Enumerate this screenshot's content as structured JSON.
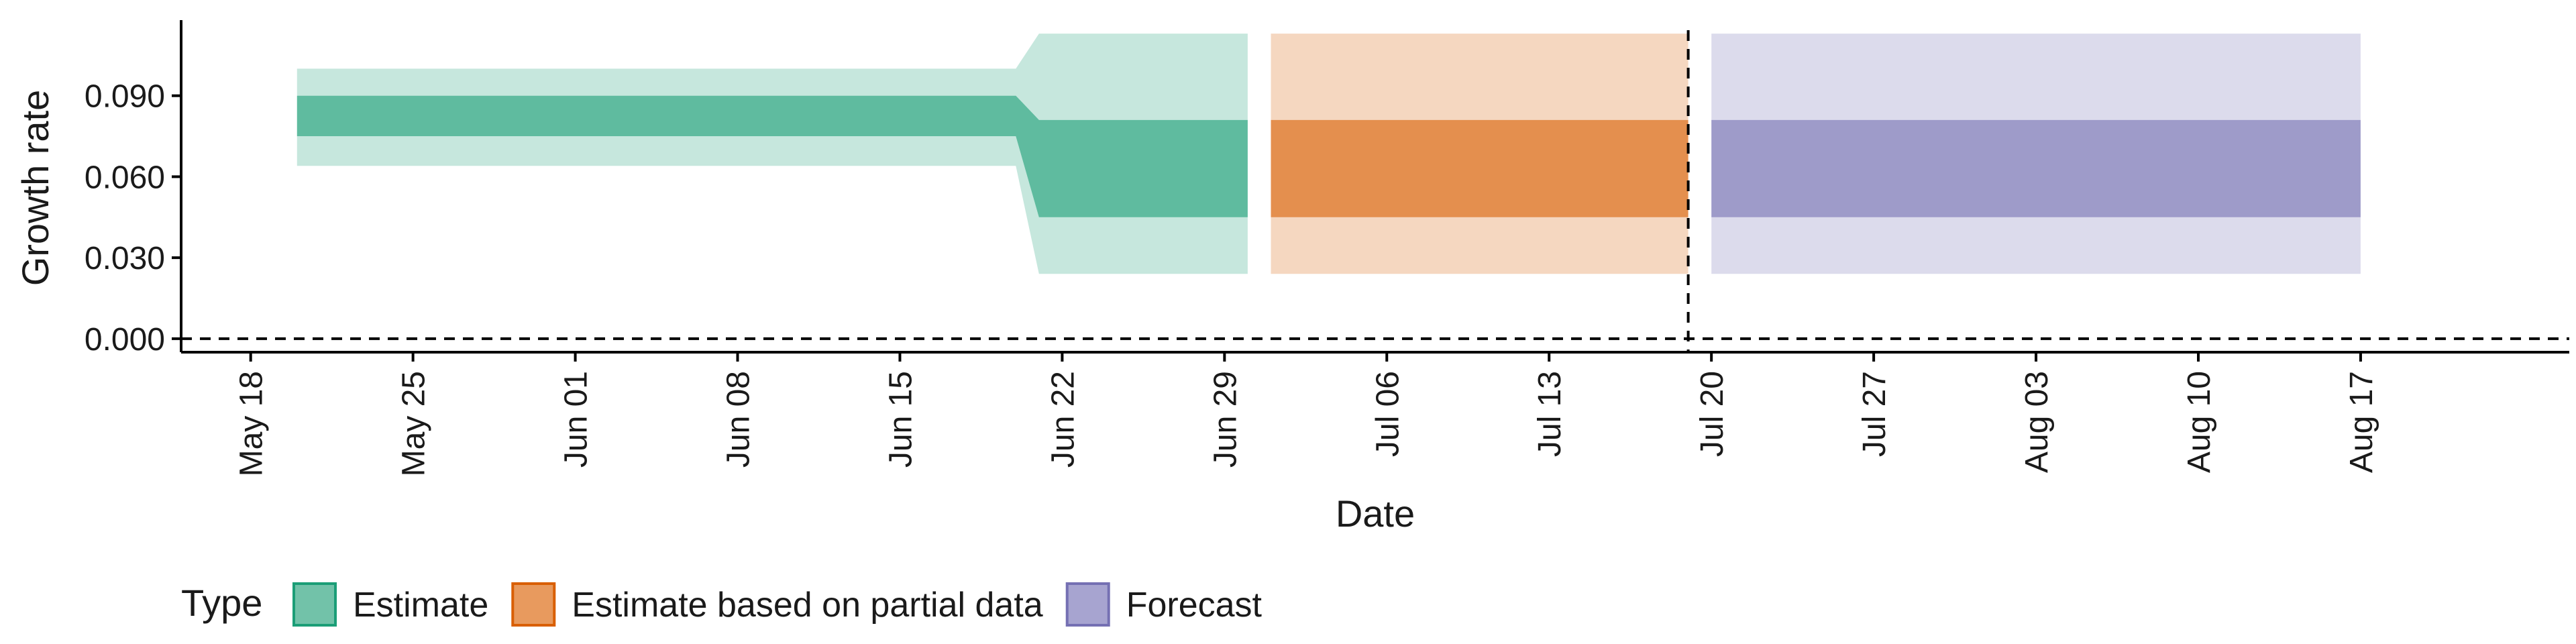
{
  "chart_data": {
    "type": "area",
    "title": "",
    "xlabel": "Date",
    "ylabel": "Growth rate",
    "x_ticks": [
      {
        "date": "2020-05-18",
        "label": "May 18"
      },
      {
        "date": "2020-05-25",
        "label": "May 25"
      },
      {
        "date": "2020-06-01",
        "label": "Jun 01"
      },
      {
        "date": "2020-06-08",
        "label": "Jun 08"
      },
      {
        "date": "2020-06-15",
        "label": "Jun 15"
      },
      {
        "date": "2020-06-22",
        "label": "Jun 22"
      },
      {
        "date": "2020-06-29",
        "label": "Jun 29"
      },
      {
        "date": "2020-07-06",
        "label": "Jul 06"
      },
      {
        "date": "2020-07-13",
        "label": "Jul 13"
      },
      {
        "date": "2020-07-20",
        "label": "Jul 20"
      },
      {
        "date": "2020-07-27",
        "label": "Jul 27"
      },
      {
        "date": "2020-08-03",
        "label": "Aug 03"
      },
      {
        "date": "2020-08-10",
        "label": "Aug 10"
      },
      {
        "date": "2020-08-17",
        "label": "Aug 17"
      }
    ],
    "y_ticks": [
      {
        "value": 0.0,
        "label": "0.000"
      },
      {
        "value": 0.03,
        "label": "0.030"
      },
      {
        "value": 0.06,
        "label": "0.060"
      },
      {
        "value": 0.09,
        "label": "0.090"
      }
    ],
    "xlim": [
      "2020-05-15",
      "2020-08-26"
    ],
    "ylim": [
      -0.005,
      0.118
    ],
    "reference_lines": {
      "horizontal_y": 0.0,
      "vertical_date": "2020-07-19",
      "style": "dashed"
    },
    "series": [
      {
        "name": "Estimate",
        "color": "#1b9e77",
        "points": [
          {
            "date": "2020-05-20",
            "outer_low": 0.064,
            "inner_low": 0.075,
            "inner_high": 0.09,
            "outer_high": 0.1
          },
          {
            "date": "2020-06-20",
            "outer_low": 0.064,
            "inner_low": 0.075,
            "inner_high": 0.09,
            "outer_high": 0.1
          },
          {
            "date": "2020-06-21",
            "outer_low": 0.024,
            "inner_low": 0.045,
            "inner_high": 0.081,
            "outer_high": 0.113
          },
          {
            "date": "2020-06-30",
            "outer_low": 0.024,
            "inner_low": 0.045,
            "inner_high": 0.081,
            "outer_high": 0.113
          }
        ]
      },
      {
        "name": "Estimate based on partial data",
        "color": "#d95f02",
        "points": [
          {
            "date": "2020-07-01",
            "outer_low": 0.024,
            "inner_low": 0.045,
            "inner_high": 0.081,
            "outer_high": 0.113
          },
          {
            "date": "2020-07-19",
            "outer_low": 0.024,
            "inner_low": 0.045,
            "inner_high": 0.081,
            "outer_high": 0.113
          }
        ]
      },
      {
        "name": "Forecast",
        "color": "#7570b3",
        "points": [
          {
            "date": "2020-07-20",
            "outer_low": 0.024,
            "inner_low": 0.045,
            "inner_high": 0.081,
            "outer_high": 0.113
          },
          {
            "date": "2020-08-17",
            "outer_low": 0.024,
            "inner_low": 0.045,
            "inner_high": 0.081,
            "outer_high": 0.113
          }
        ]
      }
    ],
    "legend": {
      "title": "Type",
      "position": "bottom",
      "entries": [
        {
          "label": "Estimate",
          "fill": "#72c2a9",
          "border": "#1b9e77"
        },
        {
          "label": "Estimate based on partial data",
          "fill": "#e89a5e",
          "border": "#d95f02"
        },
        {
          "label": "Forecast",
          "fill": "#a7a4d0",
          "border": "#7570b3"
        }
      ]
    }
  }
}
